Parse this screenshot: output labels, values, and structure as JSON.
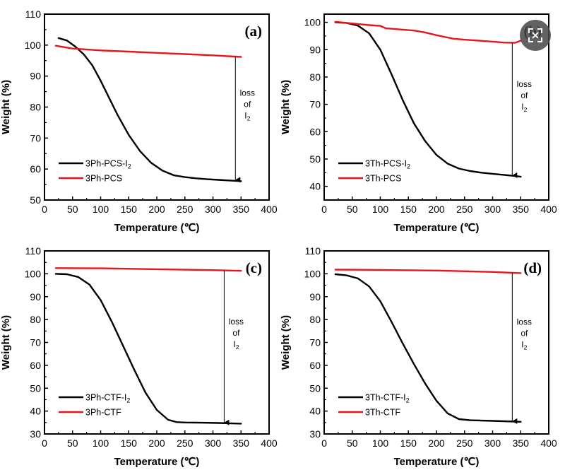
{
  "overlay": {
    "expand_icon": "fullscreen-expand-icon",
    "color": "#4a4a4a"
  },
  "colors": {
    "black_series": "#000000",
    "red_series": "#e8161b"
  },
  "chart_data": [
    {
      "id": "a",
      "type": "line",
      "panel_label": "(a)",
      "xlabel": "Temperature (℃)",
      "ylabel": "Weight (%)",
      "xlim": [
        0,
        400
      ],
      "ylim": [
        50,
        110
      ],
      "xticks": [
        0,
        50,
        100,
        150,
        200,
        250,
        300,
        350,
        400
      ],
      "yticks": [
        50,
        60,
        70,
        80,
        90,
        100,
        110
      ],
      "legend_position": "bottom-left",
      "series": [
        {
          "name": "3Ph-PCS-I",
          "subscript": "2",
          "color": "#000000",
          "x": [
            25,
            40,
            55,
            70,
            85,
            100,
            115,
            130,
            150,
            170,
            190,
            210,
            230,
            250,
            270,
            290,
            310,
            330,
            350
          ],
          "y": [
            102.3,
            101.5,
            99.5,
            97.0,
            93.5,
            88.5,
            83.0,
            77.5,
            71.0,
            65.8,
            62.0,
            59.5,
            58.0,
            57.4,
            57.0,
            56.7,
            56.5,
            56.3,
            56.1
          ]
        },
        {
          "name": "3Ph-PCS",
          "color": "#e8161b",
          "x": [
            20,
            50,
            100,
            150,
            200,
            250,
            300,
            350
          ],
          "y": [
            99.8,
            98.9,
            98.3,
            97.9,
            97.5,
            97.1,
            96.7,
            96.2
          ]
        }
      ],
      "annotation": {
        "lines": [
          "loss",
          "of",
          "I"
        ],
        "subscript": "2",
        "arrow_x": 340,
        "arrow_from": 96.3,
        "arrow_to": 56.3
      }
    },
    {
      "id": "b",
      "type": "line",
      "panel_label": "(b)",
      "xlabel": "Temperature (℃)",
      "ylabel": "Weight (%)",
      "xlim": [
        0,
        400
      ],
      "ylim": [
        35,
        103
      ],
      "xticks": [
        0,
        50,
        100,
        150,
        200,
        250,
        300,
        350,
        400
      ],
      "yticks": [
        40,
        50,
        60,
        70,
        80,
        90,
        100
      ],
      "legend_position": "bottom-left",
      "series": [
        {
          "name": "3Th-PCS-I",
          "subscript": "2",
          "color": "#000000",
          "x": [
            20,
            40,
            60,
            80,
            100,
            120,
            140,
            160,
            180,
            200,
            220,
            240,
            260,
            280,
            300,
            320,
            340,
            350
          ],
          "y": [
            100.0,
            99.8,
            98.8,
            96.0,
            90.0,
            81.0,
            71.5,
            63.0,
            56.5,
            51.5,
            48.3,
            46.5,
            45.6,
            45.0,
            44.6,
            44.2,
            43.8,
            43.5
          ]
        },
        {
          "name": "3Th-PCS",
          "color": "#e8161b",
          "x": [
            20,
            50,
            80,
            100,
            110,
            130,
            160,
            180,
            200,
            230,
            260,
            290,
            320,
            340,
            350
          ],
          "y": [
            100.2,
            99.6,
            99.0,
            98.7,
            97.8,
            97.5,
            97.0,
            96.3,
            95.3,
            94.0,
            93.5,
            93.1,
            92.6,
            92.5,
            93.3
          ]
        }
      ],
      "annotation": {
        "lines": [
          "loss",
          "of",
          "I"
        ],
        "subscript": "2",
        "arrow_x": 335,
        "arrow_from": 92.5,
        "arrow_to": 43.8
      }
    },
    {
      "id": "c",
      "type": "line",
      "panel_label": "(c)",
      "xlabel": "Temperature (℃)",
      "ylabel": "Weight (%)",
      "xlim": [
        0,
        400
      ],
      "ylim": [
        30,
        110
      ],
      "xticks": [
        0,
        50,
        100,
        150,
        200,
        250,
        300,
        350,
        400
      ],
      "yticks": [
        30,
        40,
        50,
        60,
        70,
        80,
        90,
        100,
        110
      ],
      "legend_position": "bottom-left",
      "series": [
        {
          "name": "3Ph-CTF-I",
          "subscript": "2",
          "color": "#000000",
          "x": [
            20,
            40,
            60,
            80,
            100,
            120,
            140,
            160,
            180,
            200,
            220,
            235,
            250,
            280,
            310,
            350
          ],
          "y": [
            100.0,
            99.8,
            98.6,
            95.3,
            88.5,
            79.0,
            68.5,
            58.0,
            48.0,
            40.5,
            36.2,
            35.2,
            35.0,
            34.9,
            34.8,
            34.5
          ]
        },
        {
          "name": "3Ph-CTF",
          "color": "#e8161b",
          "x": [
            20,
            100,
            200,
            300,
            350
          ],
          "y": [
            102.5,
            102.4,
            102.0,
            101.6,
            101.3
          ]
        }
      ],
      "annotation": {
        "lines": [
          "loss",
          "of",
          "I"
        ],
        "subscript": "2",
        "arrow_x": 320,
        "arrow_from": 101.4,
        "arrow_to": 34.7
      }
    },
    {
      "id": "d",
      "type": "line",
      "panel_label": "(d)",
      "xlabel": "Temperature (℃)",
      "ylabel": "Weight (%)",
      "xlim": [
        0,
        400
      ],
      "ylim": [
        30,
        110
      ],
      "xticks": [
        0,
        50,
        100,
        150,
        200,
        250,
        300,
        350,
        400
      ],
      "yticks": [
        30,
        40,
        50,
        60,
        70,
        80,
        90,
        100,
        110
      ],
      "legend_position": "bottom-left",
      "series": [
        {
          "name": "3Th-CTF-I",
          "subscript": "2",
          "color": "#000000",
          "x": [
            20,
            40,
            60,
            80,
            100,
            120,
            140,
            160,
            180,
            200,
            220,
            240,
            260,
            300,
            340,
            350
          ],
          "y": [
            99.8,
            99.3,
            98.0,
            94.5,
            88.0,
            79.0,
            69.5,
            60.5,
            52.0,
            44.5,
            39.0,
            36.5,
            36.0,
            35.7,
            35.4,
            35.3
          ]
        },
        {
          "name": "3Th-CTF",
          "color": "#e8161b",
          "x": [
            20,
            100,
            200,
            300,
            350
          ],
          "y": [
            101.8,
            101.7,
            101.4,
            100.8,
            100.3
          ]
        }
      ],
      "annotation": {
        "lines": [
          "loss",
          "of",
          "I"
        ],
        "subscript": "2",
        "arrow_x": 335,
        "arrow_from": 100.5,
        "arrow_to": 35.3
      }
    }
  ]
}
